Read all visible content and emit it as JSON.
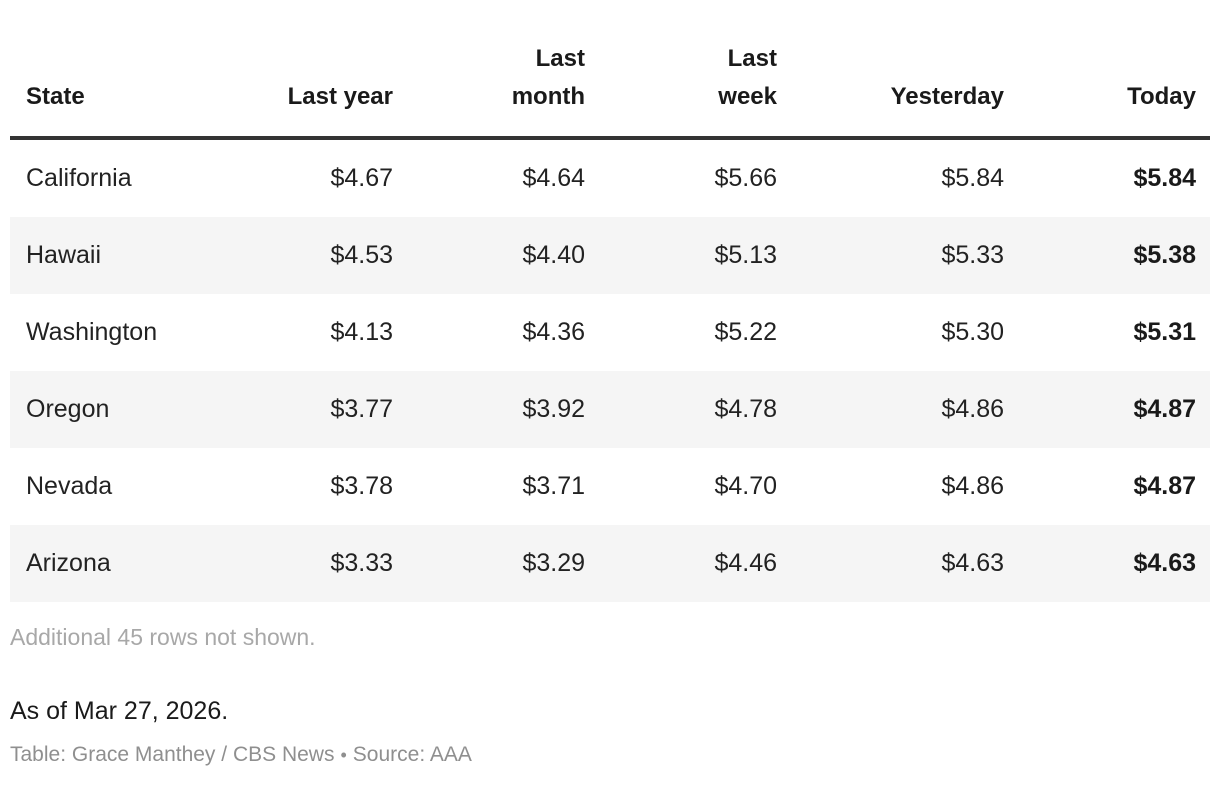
{
  "table": {
    "columns": [
      "State",
      "Last year",
      "Last month",
      "Last week",
      "Yesterday",
      "Today"
    ],
    "rows": [
      [
        "California",
        "$4.67",
        "$4.64",
        "$5.66",
        "$5.84",
        "$5.84"
      ],
      [
        "Hawaii",
        "$4.53",
        "$4.40",
        "$5.13",
        "$5.33",
        "$5.38"
      ],
      [
        "Washington",
        "$4.13",
        "$4.36",
        "$5.22",
        "$5.30",
        "$5.31"
      ],
      [
        "Oregon",
        "$3.77",
        "$3.92",
        "$4.78",
        "$4.86",
        "$4.87"
      ],
      [
        "Nevada",
        "$3.78",
        "$3.71",
        "$4.70",
        "$4.86",
        "$4.87"
      ],
      [
        "Arizona",
        "$3.33",
        "$3.29",
        "$4.46",
        "$4.63",
        "$4.63"
      ]
    ],
    "note": "Additional 45 rows not shown."
  },
  "footer": {
    "as_of": "As of Mar 27, 2026.",
    "credit": "Table: Grace Manthey / CBS News",
    "separator": "•",
    "source": "Source: AAA"
  },
  "colors": {
    "text_primary": "#1a1a1a",
    "row_stripe": "#f5f5f5",
    "header_rule": "#333333",
    "note_gray": "#a8a8a8",
    "credit_gray": "#8f8f8f"
  },
  "chart_data": {
    "type": "table",
    "columns": [
      "State",
      "Last year",
      "Last month",
      "Last week",
      "Yesterday",
      "Today"
    ],
    "rows": [
      [
        "California",
        4.67,
        4.64,
        5.66,
        5.84,
        5.84
      ],
      [
        "Hawaii",
        4.53,
        4.4,
        5.13,
        5.33,
        5.38
      ],
      [
        "Washington",
        4.13,
        4.36,
        5.22,
        5.3,
        5.31
      ],
      [
        "Oregon",
        3.77,
        3.92,
        4.78,
        4.86,
        4.87
      ],
      [
        "Nevada",
        3.78,
        3.71,
        4.7,
        4.86,
        4.87
      ],
      [
        "Arizona",
        3.33,
        3.29,
        4.46,
        4.63,
        4.63
      ]
    ],
    "currency_symbol": "$",
    "bold_column": "Today",
    "note": "Additional 45 rows not shown.",
    "as_of": "As of Mar 27, 2026.",
    "credit": "Table: Grace Manthey / CBS News",
    "source": "Source: AAA"
  }
}
